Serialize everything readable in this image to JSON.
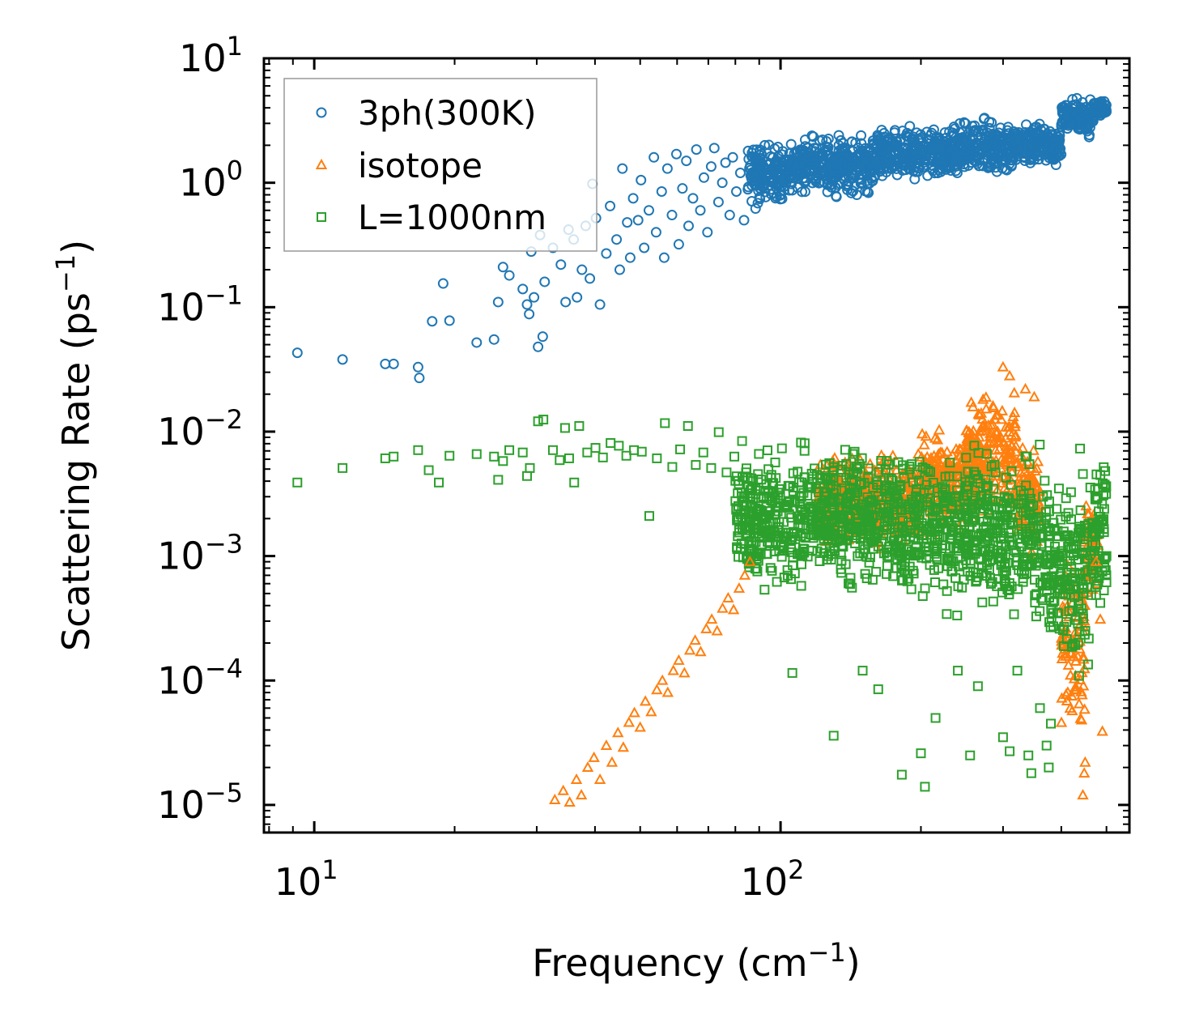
{
  "chart_data": {
    "type": "scatter",
    "xscale": "log",
    "yscale": "log",
    "xlim": [
      7.8,
      560
    ],
    "ylim": [
      6e-06,
      10
    ],
    "xlabel": "Frequency (cm",
    "xlabel_sup": "−1",
    "xlabel_end": ")",
    "ylabel": "Scattering Rate (ps",
    "ylabel_sup": "−1",
    "ylabel_end": ")",
    "x_ticks": [
      {
        "value": 10,
        "base": "10",
        "exp": "1"
      },
      {
        "value": 100,
        "base": "10",
        "exp": "2"
      }
    ],
    "y_ticks": [
      {
        "value": 10,
        "base": "10",
        "exp": "1"
      },
      {
        "value": 1,
        "base": "10",
        "exp": "0"
      },
      {
        "value": 0.1,
        "base": "10",
        "exp": "−1"
      },
      {
        "value": 0.01,
        "base": "10",
        "exp": "−2"
      },
      {
        "value": 0.001,
        "base": "10",
        "exp": "−3"
      },
      {
        "value": 0.0001,
        "base": "10",
        "exp": "−4"
      },
      {
        "value": 1e-05,
        "base": "10",
        "exp": "−5"
      }
    ],
    "legend_position": "top-left",
    "series": [
      {
        "name": "3ph(300K)",
        "marker": "circle",
        "color": "#1f77b4",
        "points": [
          [
            9.2,
            0.043
          ],
          [
            11.5,
            0.038
          ],
          [
            14.2,
            0.035
          ],
          [
            14.8,
            0.035
          ],
          [
            16.7,
            0.033
          ],
          [
            16.8,
            0.027
          ],
          [
            17.9,
            0.077
          ],
          [
            18.9,
            0.155
          ],
          [
            19.5,
            0.078
          ],
          [
            22.3,
            0.052
          ],
          [
            24.3,
            0.055
          ],
          [
            24.8,
            0.11
          ],
          [
            25.4,
            0.21
          ],
          [
            26.2,
            0.18
          ],
          [
            28.0,
            0.14
          ],
          [
            28.6,
            0.105
          ],
          [
            28.9,
            0.088
          ],
          [
            29.6,
            0.12
          ],
          [
            30.2,
            0.048
          ],
          [
            30.9,
            0.058
          ],
          [
            29.2,
            0.28
          ],
          [
            30.5,
            0.38
          ],
          [
            31.2,
            0.16
          ],
          [
            32.5,
            0.3
          ],
          [
            33.8,
            0.22
          ],
          [
            34.6,
            0.11
          ],
          [
            35.1,
            0.42
          ],
          [
            36.0,
            0.35
          ],
          [
            36.6,
            0.12
          ],
          [
            37.5,
            0.2
          ],
          [
            38.2,
            0.45
          ],
          [
            39.0,
            0.17
          ],
          [
            39.5,
            0.98
          ],
          [
            40.2,
            0.52
          ],
          [
            41.0,
            0.105
          ],
          [
            42.3,
            0.27
          ],
          [
            43.1,
            0.65
          ],
          [
            44.5,
            0.35
          ],
          [
            45.2,
            0.2
          ],
          [
            45.8,
            1.3
          ],
          [
            46.9,
            0.48
          ],
          [
            47.6,
            0.25
          ],
          [
            48.3,
            0.75
          ],
          [
            49.5,
            0.5
          ],
          [
            50.2,
            1.05
          ],
          [
            51.0,
            0.3
          ],
          [
            52.2,
            0.6
          ],
          [
            53.5,
            1.6
          ],
          [
            54.1,
            0.4
          ],
          [
            55.6,
            0.85
          ],
          [
            56.3,
            0.25
          ],
          [
            57.2,
            1.3
          ],
          [
            58.5,
            0.55
          ],
          [
            59.8,
            1.7
          ],
          [
            60.5,
            0.32
          ],
          [
            61.6,
            0.9
          ],
          [
            62.8,
            1.5
          ],
          [
            63.5,
            0.45
          ],
          [
            64.9,
            0.75
          ],
          [
            66.0,
            1.85
          ],
          [
            67.3,
            0.6
          ],
          [
            68.5,
            1.1
          ],
          [
            69.7,
            0.4
          ],
          [
            71.0,
            1.35
          ],
          [
            72.1,
            1.9
          ],
          [
            73.6,
            0.7
          ],
          [
            75.0,
            1.0
          ],
          [
            76.2,
            1.45
          ],
          [
            77.8,
            0.55
          ],
          [
            79.0,
            1.6
          ],
          [
            80.4,
            0.85
          ],
          [
            82.0,
            1.2
          ],
          [
            83.5,
            0.5
          ],
          [
            85.2,
            1.8
          ],
          [
            86.8,
            0.95
          ],
          [
            88.4,
            0.62
          ],
          [
            90.0,
            1.4
          ],
          [
            92.5,
            2.0
          ]
        ],
        "bands": [
          {
            "x": [
              85,
              105
            ],
            "y_low": 0.6,
            "y_high": 2.3
          },
          {
            "x": [
              105,
              160
            ],
            "y_low": 0.7,
            "y_high": 2.8
          },
          {
            "x": [
              160,
              230
            ],
            "y_low": 0.9,
            "y_high": 3.1
          },
          {
            "x": [
              230,
              320
            ],
            "y_low": 1.0,
            "y_high": 3.6
          },
          {
            "x": [
              320,
              400
            ],
            "y_low": 1.2,
            "y_high": 3.4
          },
          {
            "x": [
              400,
              470
            ],
            "y_low": 2.2,
            "y_high": 5.2
          },
          {
            "x": [
              470,
              500
            ],
            "y_low": 3.2,
            "y_high": 5.0
          }
        ]
      },
      {
        "name": "isotope",
        "marker": "triangle",
        "color": "#ff7f0e",
        "points": [
          [
            32.8,
            1.1e-05
          ],
          [
            34.2,
            1.3e-05
          ],
          [
            35.3,
            1.05e-05
          ],
          [
            36.5,
            1.6e-05
          ],
          [
            37.4,
            1.2e-05
          ],
          [
            38.6,
            2e-05
          ],
          [
            39.8,
            2.4e-05
          ],
          [
            41.0,
            1.6e-05
          ],
          [
            42.3,
            3e-05
          ],
          [
            43.5,
            2.2e-05
          ],
          [
            44.8,
            3.8e-05
          ],
          [
            46.0,
            2.9e-05
          ],
          [
            47.3,
            4.6e-05
          ],
          [
            48.6,
            5.5e-05
          ],
          [
            50.0,
            4.2e-05
          ],
          [
            51.3,
            6.8e-05
          ],
          [
            52.8,
            5.6e-05
          ],
          [
            54.3,
            8.4e-05
          ],
          [
            55.8,
            0.0001
          ],
          [
            57.3,
            8e-05
          ],
          [
            58.9,
            0.00012
          ],
          [
            60.5,
            0.000145
          ],
          [
            62.2,
            0.000115
          ],
          [
            63.9,
            0.000175
          ],
          [
            65.6,
            0.00021
          ],
          [
            67.4,
            0.00017
          ],
          [
            69.3,
            0.00026
          ],
          [
            71.2,
            0.00031
          ],
          [
            73.1,
            0.00025
          ],
          [
            75.1,
            0.00038
          ],
          [
            77.2,
            0.00046
          ],
          [
            79.3,
            0.00037
          ],
          [
            81.5,
            0.00055
          ],
          [
            83.8,
            0.0007
          ],
          [
            86.0,
            0.0009
          ],
          [
            300.0,
            0.033
          ],
          [
            310.0,
            0.028
          ],
          [
            335.0,
            0.022
          ],
          [
            350.0,
            0.019
          ],
          [
            485.0,
            0.00031
          ],
          [
            490.0,
            3.9e-05
          ],
          [
            475.0,
            0.0009
          ],
          [
            450.0,
            2.2e-05
          ],
          [
            445.0,
            1.2e-05
          ],
          [
            448.0,
            1.8e-05
          ]
        ],
        "bands": [
          {
            "x": [
              120,
              200
            ],
            "y_low": 0.001,
            "y_high": 0.008
          },
          {
            "x": [
              200,
              260
            ],
            "y_low": 0.0012,
            "y_high": 0.012
          },
          {
            "x": [
              250,
              320
            ],
            "y_low": 0.0015,
            "y_high": 0.028
          },
          {
            "x": [
              320,
              360
            ],
            "y_low": 0.0008,
            "y_high": 0.012
          },
          {
            "x": [
              400,
              450
            ],
            "y_low": 2e-05,
            "y_high": 0.002
          },
          {
            "x": [
              450,
              480
            ],
            "y_low": 0.0003,
            "y_high": 0.004
          }
        ]
      },
      {
        "name": "L=1000nm",
        "marker": "square",
        "color": "#2ca02c",
        "points": [
          [
            9.2,
            0.0039
          ],
          [
            11.5,
            0.0051
          ],
          [
            14.2,
            0.0061
          ],
          [
            14.8,
            0.0063
          ],
          [
            16.7,
            0.0071
          ],
          [
            17.6,
            0.0049
          ],
          [
            18.5,
            0.0039
          ],
          [
            19.5,
            0.0064
          ],
          [
            22.3,
            0.0066
          ],
          [
            24.3,
            0.0063
          ],
          [
            24.8,
            0.0041
          ],
          [
            25.4,
            0.0058
          ],
          [
            26.2,
            0.0071
          ],
          [
            28.0,
            0.0068
          ],
          [
            28.6,
            0.0044
          ],
          [
            29.0,
            0.0051
          ],
          [
            30.2,
            0.0121
          ],
          [
            31.0,
            0.0125
          ],
          [
            32.5,
            0.0071
          ],
          [
            33.6,
            0.0059
          ],
          [
            34.5,
            0.0107
          ],
          [
            35.2,
            0.0061
          ],
          [
            36.1,
            0.0039
          ],
          [
            37.0,
            0.0111
          ],
          [
            38.5,
            0.0068
          ],
          [
            40.1,
            0.0074
          ],
          [
            41.6,
            0.0062
          ],
          [
            43.2,
            0.0081
          ],
          [
            45.0,
            0.0077
          ],
          [
            46.7,
            0.0064
          ],
          [
            48.5,
            0.0071
          ],
          [
            50.4,
            0.0069
          ],
          [
            52.3,
            0.0021
          ],
          [
            54.3,
            0.0061
          ],
          [
            56.5,
            0.0117
          ],
          [
            58.6,
            0.0052
          ],
          [
            60.9,
            0.0072
          ],
          [
            63.3,
            0.0111
          ],
          [
            65.8,
            0.0054
          ],
          [
            68.3,
            0.0068
          ],
          [
            71.0,
            0.0051
          ],
          [
            73.7,
            0.0099
          ],
          [
            76.6,
            0.0047
          ],
          [
            79.6,
            0.0063
          ],
          [
            82.7,
            0.0084
          ],
          [
            106.0,
            0.000115
          ],
          [
            130.0,
            3.6e-05
          ],
          [
            150.0,
            0.00012
          ],
          [
            162.0,
            8.5e-05
          ],
          [
            182.0,
            1.75e-05
          ],
          [
            200.0,
            2.6e-05
          ],
          [
            204.0,
            1.4e-05
          ],
          [
            215.0,
            5e-05
          ],
          [
            240.0,
            0.00012
          ],
          [
            255.0,
            2.5e-05
          ],
          [
            265.0,
            9e-05
          ],
          [
            300.0,
            3.5e-05
          ],
          [
            310.0,
            2.7e-05
          ],
          [
            322.0,
            0.00012
          ],
          [
            340.0,
            2.5e-05
          ],
          [
            345.0,
            1.8e-05
          ],
          [
            360.0,
            6e-05
          ],
          [
            372.0,
            3e-05
          ],
          [
            376.0,
            2e-05
          ],
          [
            380.0,
            4.5e-05
          ],
          [
            485.0,
            0.00042
          ],
          [
            490.0,
            0.00075
          ],
          [
            495.0,
            0.00095
          ],
          [
            470.0,
            0.0015
          ],
          [
            480.0,
            0.0011
          ]
        ],
        "bands": [
          {
            "x": [
              80,
              110
            ],
            "y_low": 0.0004,
            "y_high": 0.009
          },
          {
            "x": [
              110,
              180
            ],
            "y_low": 0.00045,
            "y_high": 0.01
          },
          {
            "x": [
              180,
              270
            ],
            "y_low": 0.0003,
            "y_high": 0.0095
          },
          {
            "x": [
              270,
              350
            ],
            "y_low": 0.00025,
            "y_high": 0.009
          },
          {
            "x": [
              350,
              420
            ],
            "y_low": 0.0001,
            "y_high": 0.0085
          },
          {
            "x": [
              420,
              460
            ],
            "y_low": 5e-05,
            "y_high": 0.008
          },
          {
            "x": [
              460,
              500
            ],
            "y_low": 0.0003,
            "y_high": 0.0095
          }
        ]
      }
    ]
  }
}
